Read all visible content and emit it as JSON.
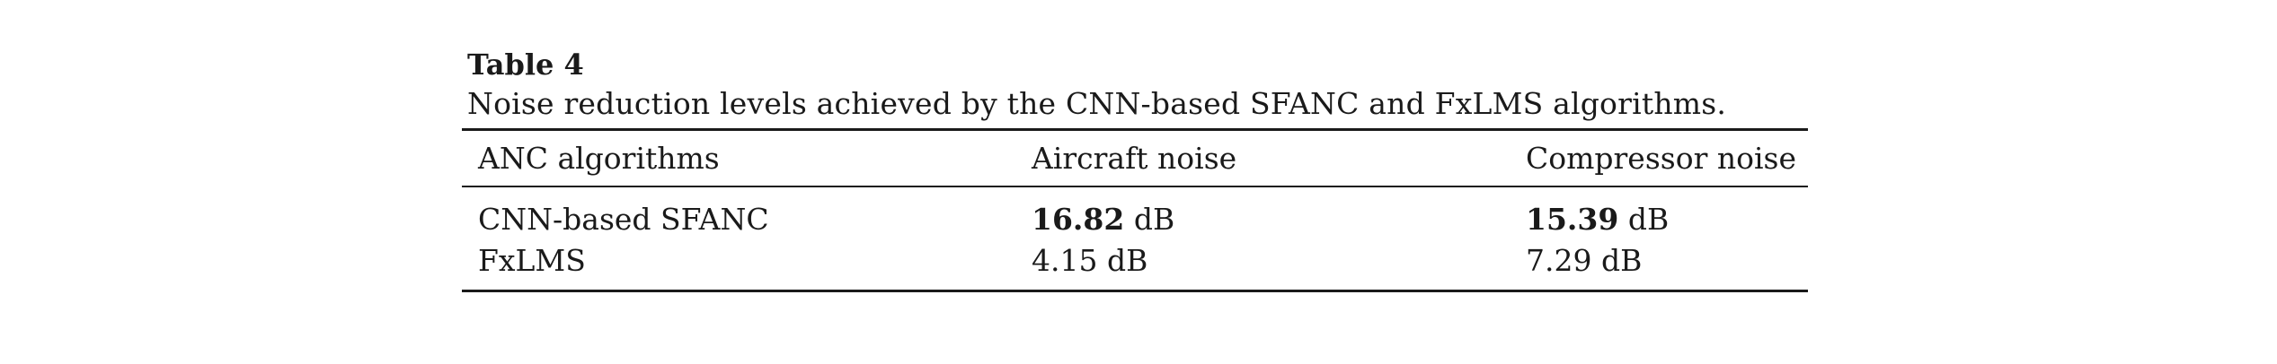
{
  "table": {
    "label": "Table 4",
    "caption": "Noise reduction levels achieved by the CNN-based SFANC and FxLMS algorithms.",
    "headers": [
      "ANC algorithms",
      "Aircraft noise",
      "Compressor noise"
    ],
    "rows": [
      {
        "algorithm": "CNN-based SFANC",
        "aircraft_value": "16.82",
        "aircraft_unit": " dB",
        "compressor_value": "15.39",
        "compressor_unit": " dB"
      },
      {
        "algorithm": "FxLMS",
        "aircraft_value": "4.15",
        "aircraft_unit": " dB",
        "compressor_value": "7.29",
        "compressor_unit": " dB"
      }
    ]
  }
}
